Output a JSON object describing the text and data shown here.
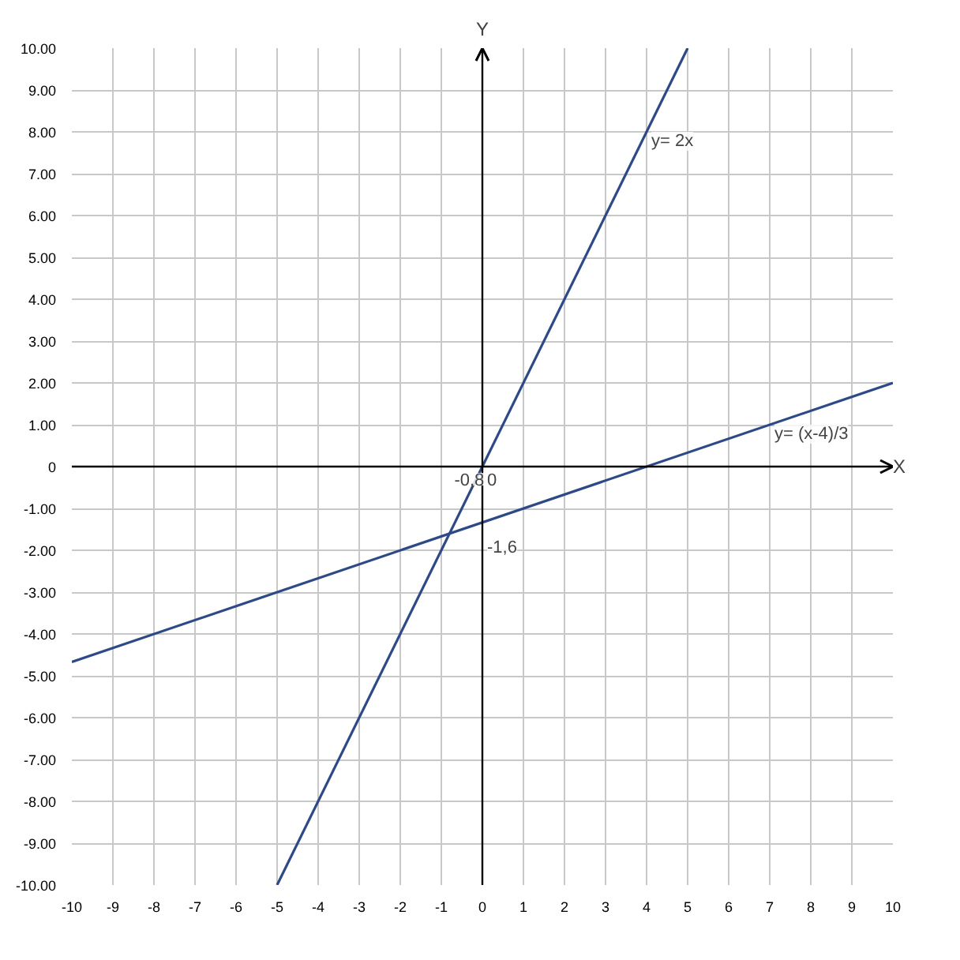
{
  "chart_data": {
    "type": "line",
    "xlabel": "X",
    "ylabel": "Y",
    "xlim": [
      -10,
      10
    ],
    "ylim": [
      -10,
      10
    ],
    "xticks": [
      -10,
      -9,
      -8,
      -7,
      -6,
      -5,
      -4,
      -3,
      -2,
      -1,
      0,
      1,
      2,
      3,
      4,
      5,
      6,
      7,
      8,
      9,
      10
    ],
    "yticks": [
      {
        "value": -10,
        "label": "-10.00"
      },
      {
        "value": -9,
        "label": "-9.00"
      },
      {
        "value": -8,
        "label": "-8.00"
      },
      {
        "value": -7,
        "label": "-7.00"
      },
      {
        "value": -6,
        "label": "-6.00"
      },
      {
        "value": -5,
        "label": "-5.00"
      },
      {
        "value": -4,
        "label": "-4.00"
      },
      {
        "value": -3,
        "label": "-3.00"
      },
      {
        "value": -2,
        "label": "-2.00"
      },
      {
        "value": -1,
        "label": "-1.00"
      },
      0,
      {
        "value": 1,
        "label": "1.00"
      },
      {
        "value": 2,
        "label": "2.00"
      },
      {
        "value": 3,
        "label": "3.00"
      },
      {
        "value": 4,
        "label": "4.00"
      },
      {
        "value": 5,
        "label": "5.00"
      },
      {
        "value": 6,
        "label": "6.00"
      },
      {
        "value": 7,
        "label": "7.00"
      },
      {
        "value": 8,
        "label": "8.00"
      },
      {
        "value": 9,
        "label": "9.00"
      },
      {
        "value": 10,
        "label": "10.00"
      }
    ],
    "grid": true,
    "marker": "none",
    "line_style": "solid",
    "series": [
      {
        "color": "#2e4a86",
        "x": [
          -5,
          5
        ],
        "values": [
          -10,
          10
        ]
      },
      {
        "color": "#2e4a86",
        "x": [
          -10,
          10
        ],
        "values": [
          -4.67,
          2
        ]
      }
    ],
    "annotations": [
      {
        "text": "y= 2x",
        "x": 4,
        "y": 8
      },
      {
        "text": "y= (x-4)/3",
        "x": 7,
        "y": 1
      },
      {
        "text": "-0,8",
        "x": -0.8,
        "y": -1.6
      },
      {
        "text": "0",
        "x": 0,
        "y": 0
      },
      {
        "text": "-1,6",
        "x": -0.8,
        "y": -1.6
      }
    ]
  }
}
